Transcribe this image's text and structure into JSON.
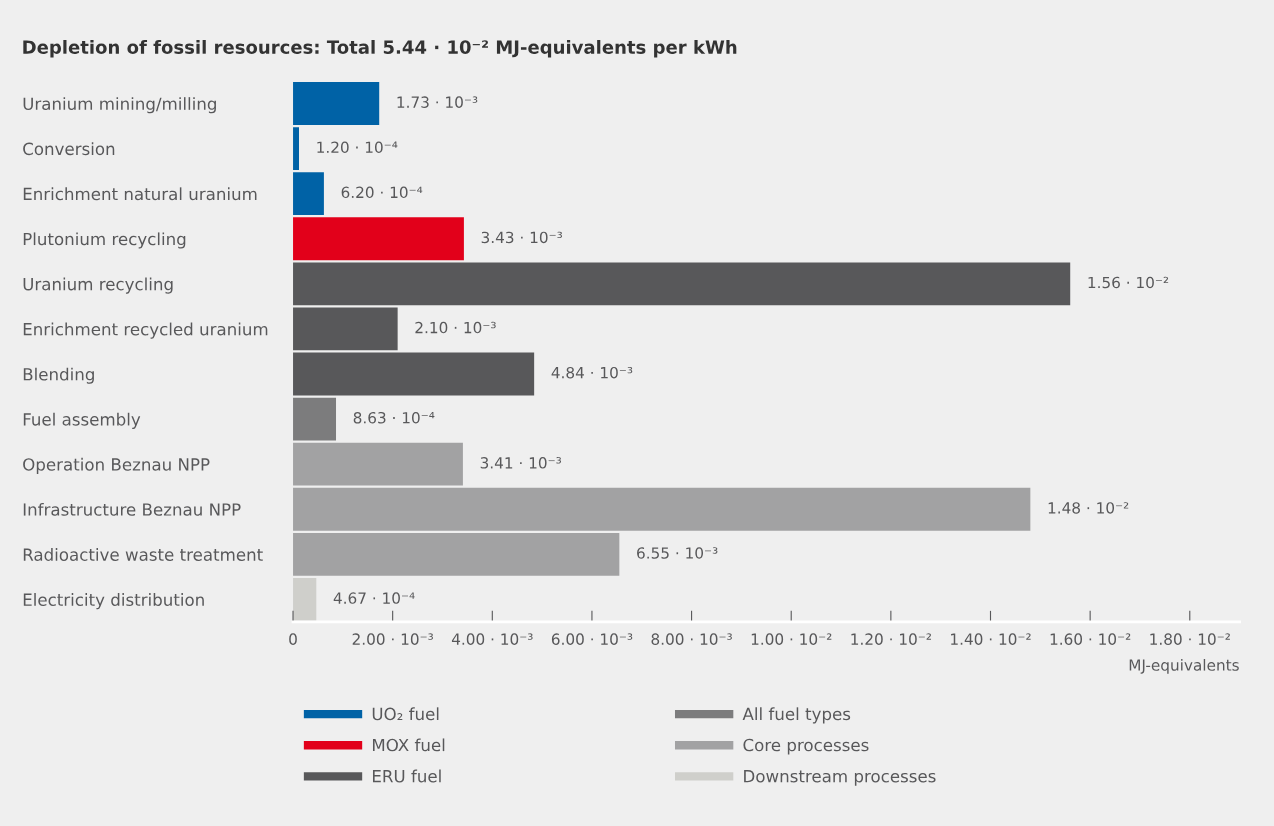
{
  "chart_data": {
    "type": "bar",
    "orientation": "horizontal",
    "title": "Depletion of fossil resources: Total 5.44 · 10⁻² MJ-equivalents per kWh",
    "xlabel": "MJ-equivalents",
    "categories": [
      "Uranium mining/milling",
      "Conversion",
      "Enrichment natural uranium",
      "Plutonium recycling",
      "Uranium recycling",
      "Enrichment recycled uranium",
      "Blending",
      "Fuel assembly",
      "Operation Beznau NPP",
      "Infrastructure Beznau NPP",
      "Radioactive waste treatment",
      "Electricity distribution"
    ],
    "series": [
      {
        "name": "UO₂ fuel",
        "color": "#0062a6",
        "values": [
          0.00173,
          0.00012,
          0.00062,
          null,
          null,
          null,
          null,
          null,
          null,
          null,
          null,
          null
        ],
        "value_labels": [
          "1.73 · 10⁻³",
          "1.20 · 10⁻⁴",
          "6.20 · 10⁻⁴",
          null,
          null,
          null,
          null,
          null,
          null,
          null,
          null,
          null
        ]
      },
      {
        "name": "MOX fuel",
        "color": "#e2001a",
        "values": [
          null,
          null,
          null,
          0.00343,
          null,
          null,
          null,
          null,
          null,
          null,
          null,
          null
        ],
        "value_labels": [
          null,
          null,
          null,
          "3.43 · 10⁻³",
          null,
          null,
          null,
          null,
          null,
          null,
          null,
          null
        ]
      },
      {
        "name": "ERU fuel",
        "color": "#58585a",
        "values": [
          null,
          null,
          null,
          null,
          0.0156,
          0.0021,
          0.00484,
          null,
          null,
          null,
          null,
          null
        ],
        "value_labels": [
          null,
          null,
          null,
          null,
          "1.56 · 10⁻²",
          "2.10 · 10⁻³",
          "4.84 · 10⁻³",
          null,
          null,
          null,
          null,
          null
        ]
      },
      {
        "name": "All fuel types",
        "color": "#7c7c7d",
        "values": [
          null,
          null,
          null,
          null,
          null,
          null,
          null,
          0.000863,
          null,
          null,
          null,
          null
        ],
        "value_labels": [
          null,
          null,
          null,
          null,
          null,
          null,
          null,
          "8.63 · 10⁻⁴",
          null,
          null,
          null,
          null
        ]
      },
      {
        "name": "Core processes",
        "color": "#a2a2a3",
        "values": [
          null,
          null,
          null,
          null,
          null,
          null,
          null,
          null,
          0.00341,
          0.0148,
          0.00655,
          null
        ],
        "value_labels": [
          null,
          null,
          null,
          null,
          null,
          null,
          null,
          null,
          "3.41 · 10⁻³",
          "1.48 · 10⁻²",
          "6.55 · 10⁻³",
          null
        ]
      },
      {
        "name": "Downstream processes",
        "color": "#cfcfcb",
        "values": [
          null,
          null,
          null,
          null,
          null,
          null,
          null,
          null,
          null,
          null,
          null,
          0.000467
        ],
        "value_labels": [
          null,
          null,
          null,
          null,
          null,
          null,
          null,
          null,
          null,
          null,
          null,
          "4.67 · 10⁻⁴"
        ]
      }
    ],
    "xlim": [
      0,
      0.019
    ],
    "xticks": [
      0,
      {
        "value": 0.002,
        "label": "2.00 · 10⁻³"
      },
      {
        "value": 0.004,
        "label": "4.00 · 10⁻³"
      },
      {
        "value": 0.006,
        "label": "6.00 · 10⁻³"
      },
      {
        "value": 0.008,
        "label": "8.00 · 10⁻³"
      },
      {
        "value": 0.01,
        "label": "1.00 · 10⁻²"
      },
      {
        "value": 0.012,
        "label": "1.20 · 10⁻²"
      },
      {
        "value": 0.014,
        "label": "1.40 · 10⁻²"
      },
      {
        "value": 0.016,
        "label": "1.60 · 10⁻²"
      },
      {
        "value": 0.018,
        "label": "1.80 · 10⁻²"
      }
    ],
    "legend": "bottom",
    "grid": false
  }
}
